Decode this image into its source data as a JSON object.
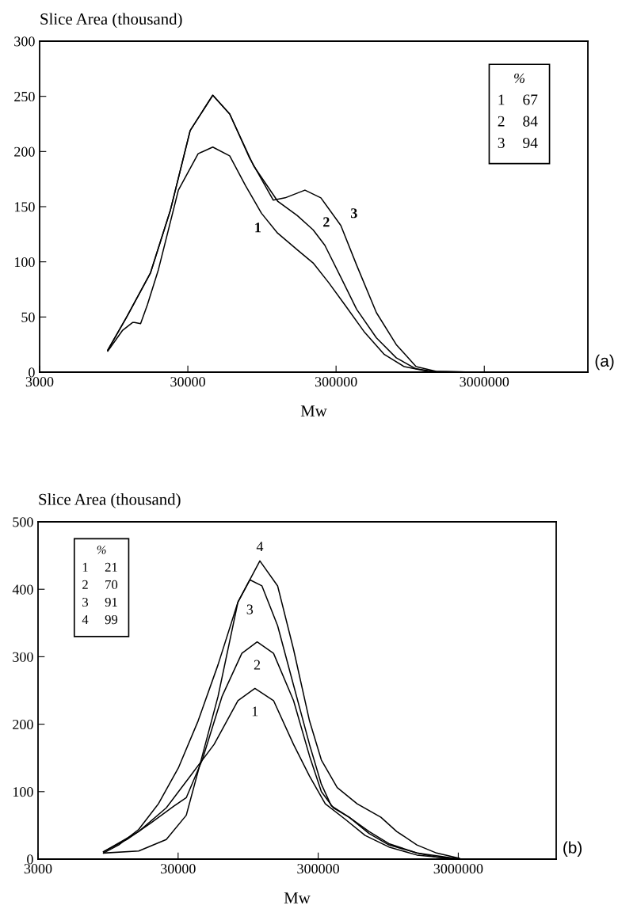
{
  "chart_data": [
    {
      "type": "line",
      "ylabel": "Slice Area (thousand)",
      "xlabel": "Mw",
      "log": "x",
      "grid": false,
      "legend": false,
      "xlim": [
        3000,
        15000000
      ],
      "xticks": [
        3000,
        30000,
        300000,
        3000000
      ],
      "ylim": [
        0,
        300
      ],
      "yticks": [
        0,
        50,
        100,
        150,
        200,
        250,
        300
      ],
      "annotations": [
        "%",
        "1 67",
        "2 84",
        "3 94",
        "(a)"
      ],
      "series": [
        {
          "name": "1",
          "color": "#000000",
          "x": [
            8650,
            10900,
            12700,
            13100,
            14400,
            16000,
            19000,
            25900,
            35200,
            44200,
            57500,
            73600,
            94200,
            121000,
            164000,
            210000,
            268000,
            344000,
            468000,
            635000,
            865000,
            1250000,
            2620000
          ],
          "values": [
            19,
            38,
            45,
            45,
            44,
            61,
            93,
            165,
            198,
            204,
            196,
            169,
            144,
            126,
            111,
            99,
            81,
            61,
            36,
            16,
            5,
            0.7,
            0
          ]
        },
        {
          "name": "2",
          "color": "#000000",
          "x": [
            8650,
            11600,
            16800,
            22900,
            31100,
            44200,
            57500,
            83400,
            121000,
            164000,
            210000,
            252000,
            323000,
            413000,
            562000,
            764000,
            1040000,
            1420000,
            2620000
          ],
          "values": [
            20,
            50,
            90,
            147,
            219,
            251,
            234,
            187,
            155,
            142,
            129,
            115,
            86,
            57,
            31,
            13,
            3,
            0.4,
            0
          ]
        },
        {
          "name": "3",
          "color": "#000000",
          "x": [
            8650,
            11600,
            16800,
            22900,
            31100,
            44200,
            57500,
            78300,
            113000,
            136000,
            185000,
            237000,
            323000,
            413000,
            561000,
            764000,
            1040000,
            1420000,
            2620000
          ],
          "values": [
            20,
            50,
            90,
            147,
            219,
            251,
            234,
            194,
            156,
            158,
            165,
            158,
            133,
            97,
            54,
            25,
            5,
            0.7,
            0
          ]
        }
      ]
    },
    {
      "type": "line",
      "ylabel": "Slice Area (thousand)",
      "xlabel": "Mw",
      "log": "x",
      "grid": false,
      "legend": false,
      "xlim": [
        3000,
        15000000
      ],
      "xticks": [
        3000,
        30000,
        300000,
        3000000
      ],
      "ylim": [
        0,
        500
      ],
      "yticks": [
        0,
        100,
        200,
        300,
        400,
        500
      ],
      "annotations": [
        "%",
        "1 21",
        "2 70",
        "3 91",
        "4 99",
        "(b)"
      ],
      "series": [
        {
          "name": "1",
          "color": "#000000",
          "x": [
            8800,
            15700,
            24700,
            36600,
            54200,
            80200,
            106000,
            144000,
            200000,
            260000,
            337000,
            468000,
            649000,
            959000,
            1520000,
            3070000
          ],
          "values": [
            11,
            41,
            76,
            123,
            170,
            235,
            253,
            235,
            170,
            123,
            82,
            59,
            35,
            18,
            6,
            0
          ]
        },
        {
          "name": "2",
          "color": "#000000",
          "x": [
            8800,
            12900,
            19000,
            28200,
            34300,
            44600,
            61700,
            85500,
            110000,
            144000,
            200000,
            260000,
            316000,
            385000,
            499000,
            692000,
            959000,
            1520000,
            3070000
          ],
          "values": [
            11,
            29,
            53,
            79,
            91,
            147,
            241,
            305,
            322,
            305,
            235,
            153,
            100,
            76,
            62,
            38,
            21,
            9,
            0
          ]
        },
        {
          "name": "3",
          "color": "#000000",
          "x": [
            8800,
            11300,
            15700,
            21700,
            30100,
            41700,
            57800,
            80200,
            97500,
            119000,
            154000,
            200000,
            260000,
            316000,
            372000,
            499000,
            692000,
            959000,
            1520000,
            2100000,
            3070000
          ],
          "values": [
            9,
            21,
            44,
            82,
            135,
            205,
            288,
            381,
            414,
            405,
            346,
            258,
            170,
            111,
            79,
            62,
            41,
            23,
            9,
            3,
            0
          ]
        },
        {
          "name": "4",
          "color": "#000000",
          "x": [
            8800,
            15700,
            24700,
            34300,
            44600,
            57800,
            80200,
            115000,
            154000,
            200000,
            260000,
            316000,
            410000,
            569000,
            841000,
            1090000,
            1520000,
            2100000,
            3070000
          ],
          "values": [
            9,
            12,
            29,
            65,
            153,
            241,
            381,
            442,
            405,
            311,
            205,
            147,
            106,
            82,
            62,
            41,
            21,
            9,
            1
          ]
        }
      ]
    }
  ]
}
